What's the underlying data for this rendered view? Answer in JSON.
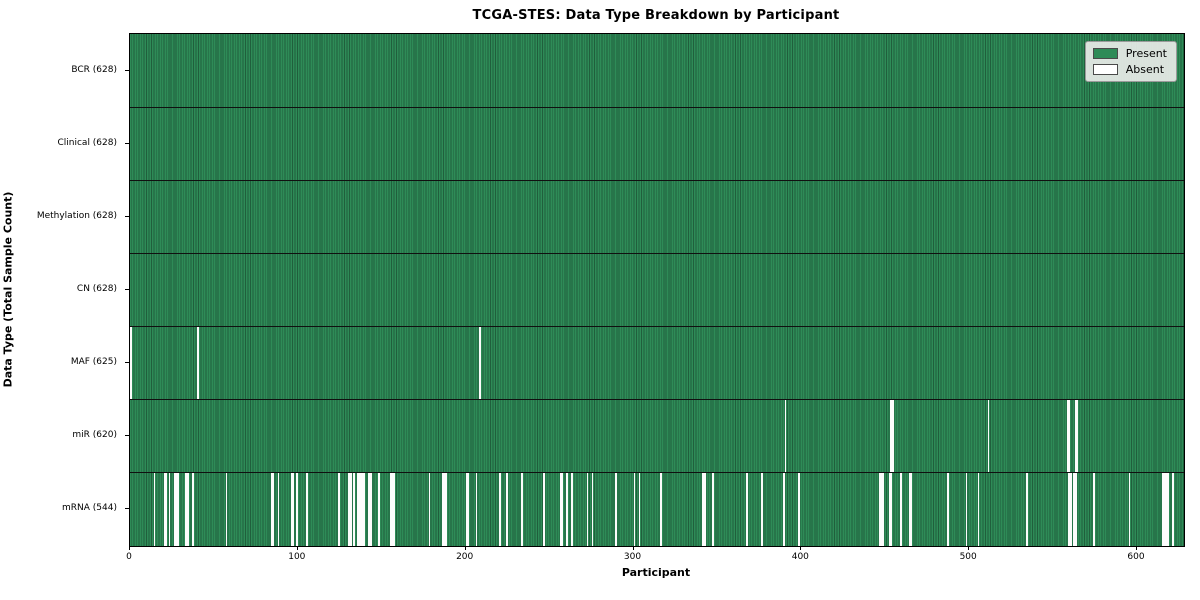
{
  "chart_data": {
    "type": "heatmap",
    "title": "TCGA-STES: Data Type Breakdown by Participant",
    "xlabel": "Participant",
    "ylabel": "Data Type (Total Sample Count)",
    "n_participants": 628,
    "x_ticks": [
      0,
      100,
      200,
      300,
      400,
      500,
      600
    ],
    "legend": [
      {
        "label": "Present",
        "color": "#2e8b57"
      },
      {
        "label": "Absent",
        "color": "#ffffff"
      }
    ],
    "legend_position": "upper right",
    "colors": {
      "present": "#2e8b57",
      "present_edge": "#205f3c",
      "absent": "#fcfcfc",
      "row_separator": "#101010",
      "plot_border": "#000000"
    },
    "rows": [
      {
        "label": "BCR (628)",
        "data_type": "BCR",
        "present_count": 628,
        "absent_participants": []
      },
      {
        "label": "Clinical (628)",
        "data_type": "Clinical",
        "present_count": 628,
        "absent_participants": []
      },
      {
        "label": "Methylation (628)",
        "data_type": "Methylation",
        "present_count": 628,
        "absent_participants": []
      },
      {
        "label": "CN (628)",
        "data_type": "CN",
        "present_count": 628,
        "absent_participants": []
      },
      {
        "label": "MAF (625)",
        "data_type": "MAF",
        "present_count": 625,
        "absent_participants": [
          0,
          40,
          208
        ]
      },
      {
        "label": "miR (620)",
        "data_type": "miR",
        "present_count": 620,
        "absent_participants": [
          390,
          453,
          454,
          511,
          558,
          559,
          563,
          564
        ]
      },
      {
        "label": "mRNA (544)",
        "data_type": "mRNA",
        "present_count": 544,
        "absent_participants": [
          14,
          20,
          21,
          23,
          26,
          27,
          28,
          33,
          34,
          37,
          57,
          84,
          85,
          88,
          96,
          97,
          99,
          105,
          124,
          130,
          131,
          133,
          135,
          136,
          137,
          138,
          139,
          142,
          143,
          148,
          155,
          156,
          157,
          178,
          186,
          187,
          188,
          200,
          201,
          206,
          220,
          224,
          233,
          246,
          256,
          257,
          260,
          263,
          272,
          275,
          289,
          300,
          303,
          316,
          341,
          342,
          347,
          367,
          376,
          389,
          398,
          446,
          447,
          448,
          452,
          453,
          459,
          464,
          465,
          487,
          498,
          505,
          534,
          559,
          560,
          562,
          563,
          574,
          595,
          615,
          616,
          617,
          618,
          621
        ]
      }
    ]
  }
}
